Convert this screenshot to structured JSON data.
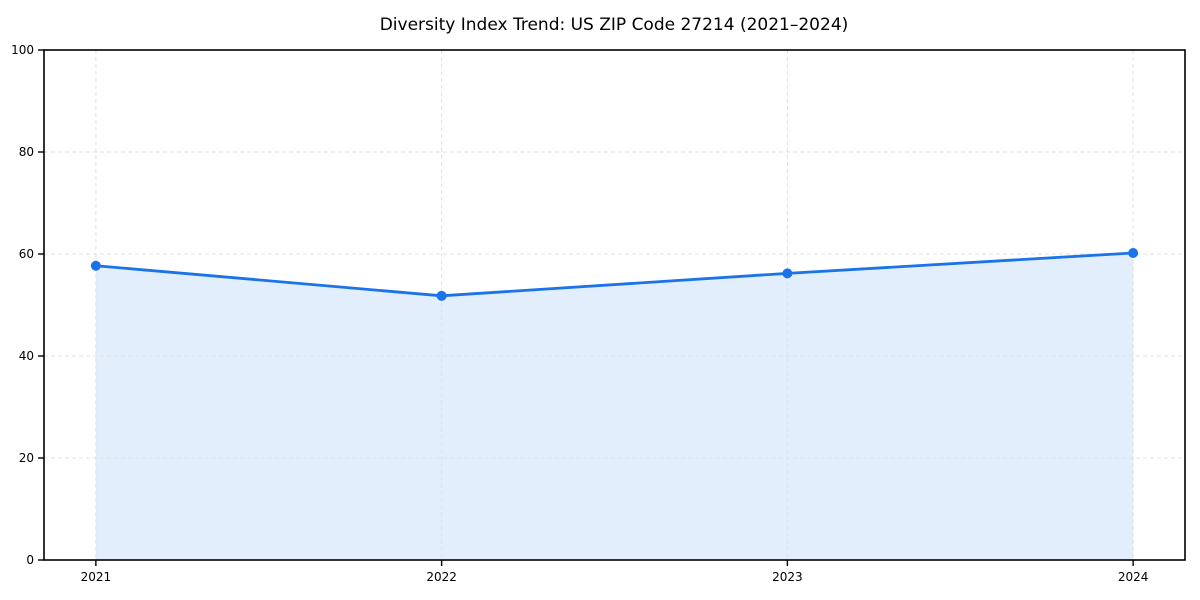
{
  "chart_data": {
    "type": "line",
    "title": "Diversity Index Trend: US ZIP Code 27214 (2021–2024)",
    "categories": [
      "2021",
      "2022",
      "2023",
      "2024"
    ],
    "series": [
      {
        "name": "Diversity Index",
        "values": [
          57.7,
          51.8,
          56.2,
          60.2
        ]
      }
    ],
    "xlabel": "",
    "ylabel": "",
    "ylim": [
      0,
      100
    ],
    "yticks": [
      0,
      20,
      40,
      60,
      80,
      100
    ],
    "area_fill": true,
    "grid": {
      "visible": true,
      "style": "dashed",
      "color": "#e0e0e0"
    },
    "legend_position": "none",
    "colors": {
      "line": "#1a73e8",
      "marker": "#1a73e8",
      "fill": "#1a73e8",
      "fill_opacity": 0.12,
      "spine": "#000000",
      "tick": "#000000",
      "title": "#000000",
      "tick_label": "#000000",
      "background": "#ffffff"
    }
  }
}
